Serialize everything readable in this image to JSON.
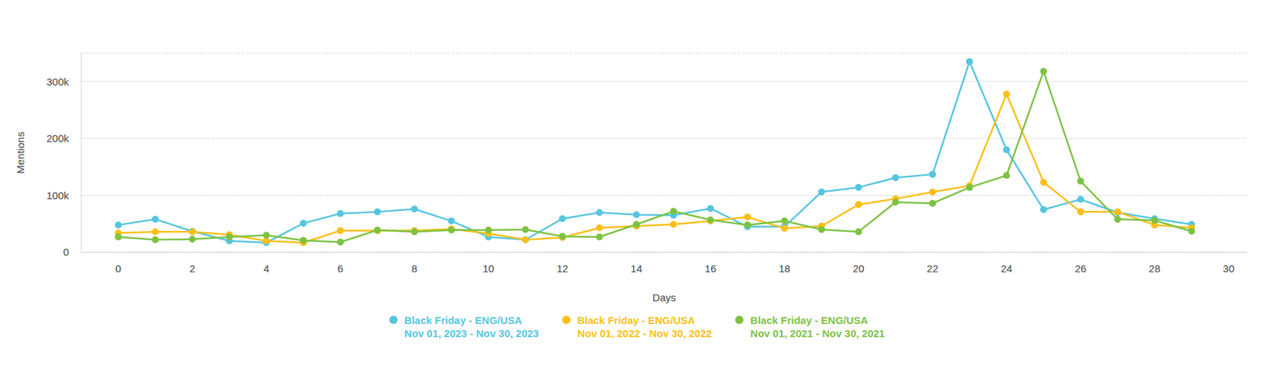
{
  "chart_data": {
    "type": "line",
    "x_label": "Days",
    "y_label": "Mentions",
    "x": [
      0,
      1,
      2,
      3,
      4,
      5,
      6,
      7,
      8,
      9,
      10,
      11,
      12,
      13,
      14,
      15,
      16,
      17,
      18,
      19,
      20,
      21,
      22,
      23,
      24,
      25,
      26,
      27,
      28,
      29
    ],
    "xlim": [
      -1,
      30.5
    ],
    "xticks": [
      0,
      2,
      4,
      6,
      8,
      10,
      12,
      14,
      16,
      18,
      20,
      22,
      24,
      26,
      28,
      30
    ],
    "ylim": [
      0,
      350000
    ],
    "yticks": [
      0,
      {
        "value": 100000,
        "label": "100k"
      },
      {
        "value": 200000,
        "label": "200k"
      },
      {
        "value": 300000,
        "label": "300k"
      }
    ],
    "grid": true,
    "marker": "circle",
    "legend": "bottom",
    "series": [
      {
        "name": "Black Friday - ENG/USA",
        "period": "Nov 01, 2023 - Nov 30, 2023",
        "color": "#56c5e0",
        "values": [
          48000,
          58000,
          37000,
          20000,
          17000,
          51000,
          68000,
          71000,
          76000,
          55000,
          27000,
          22000,
          59000,
          70000,
          66000,
          65000,
          77000,
          45000,
          45000,
          106000,
          114000,
          131000,
          137000,
          335000,
          180000,
          75000,
          93000,
          70000,
          59000,
          49000
        ]
      },
      {
        "name": "Black Friday - ENG/USA",
        "period": "Nov 01, 2022 - Nov 30, 2022",
        "color": "#fbbf16",
        "values": [
          34000,
          36000,
          36000,
          31000,
          20000,
          17000,
          38000,
          38000,
          38000,
          41000,
          33000,
          22000,
          26000,
          43000,
          46000,
          49000,
          55000,
          62000,
          42000,
          46000,
          84000,
          94000,
          106000,
          117000,
          278000,
          123000,
          71000,
          71000,
          48000,
          43000
        ]
      },
      {
        "name": "Black Friday - ENG/USA",
        "period": "Nov 01, 2021 - Nov 30, 2021",
        "color": "#7dc242",
        "values": [
          27000,
          22000,
          23000,
          27000,
          30000,
          21000,
          18000,
          39000,
          36000,
          39000,
          39000,
          40000,
          28000,
          27000,
          49000,
          72000,
          57000,
          48000,
          55000,
          40000,
          36000,
          88000,
          86000,
          114000,
          135000,
          318000,
          125000,
          58000,
          56000,
          37000
        ]
      }
    ]
  }
}
